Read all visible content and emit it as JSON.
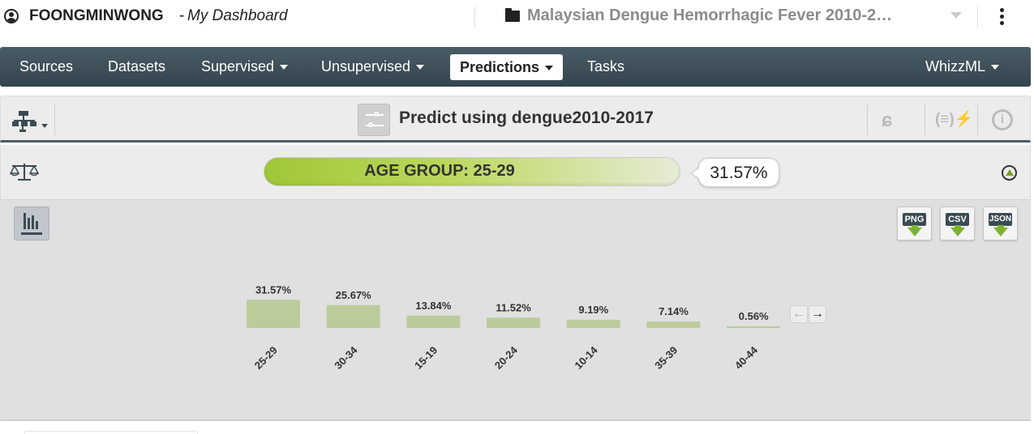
{
  "topbar": {
    "username": "FOONGMINWONG",
    "separator": "-",
    "dashboard_title": "My Dashboard",
    "project_name": "Malaysian Dengue Hemorrhagic Fever 2010-2…"
  },
  "nav": {
    "sources": "Sources",
    "datasets": "Datasets",
    "supervised": "Supervised",
    "unsupervised": "Unsupervised",
    "predictions": "Predictions",
    "tasks": "Tasks",
    "whizzml": "WhizzML"
  },
  "header": {
    "title": "Predict using dengue2010-2017",
    "retrain_icon": "ɕ",
    "batch_icon": "(≡)⚡"
  },
  "result": {
    "label": "AGE GROUP: 25-29",
    "confidence": "31.57%",
    "confidence_value": 0.3157
  },
  "downloads": {
    "png": "PNG",
    "csv": "CSV",
    "json": "JSON"
  },
  "pager": {
    "prev": "←",
    "next": "→"
  },
  "colors": {
    "nav_bg": "#3b4b54",
    "bar_fill": "#bccb9a",
    "result_green": "#9fc738",
    "download_arrow": "#7cb32e"
  },
  "chart_data": {
    "type": "bar",
    "categories": [
      "25-29",
      "30-34",
      "15-19",
      "20-24",
      "10-14",
      "35-39",
      "40-44"
    ],
    "values": [
      31.57,
      25.67,
      13.84,
      11.52,
      9.19,
      7.14,
      0.56
    ],
    "value_labels": [
      "31.57%",
      "25.67%",
      "13.84%",
      "11.52%",
      "9.19%",
      "7.14%",
      "0.56%"
    ],
    "title": "",
    "xlabel": "",
    "ylabel": "",
    "ylim": [
      0,
      100
    ],
    "grid": false
  }
}
